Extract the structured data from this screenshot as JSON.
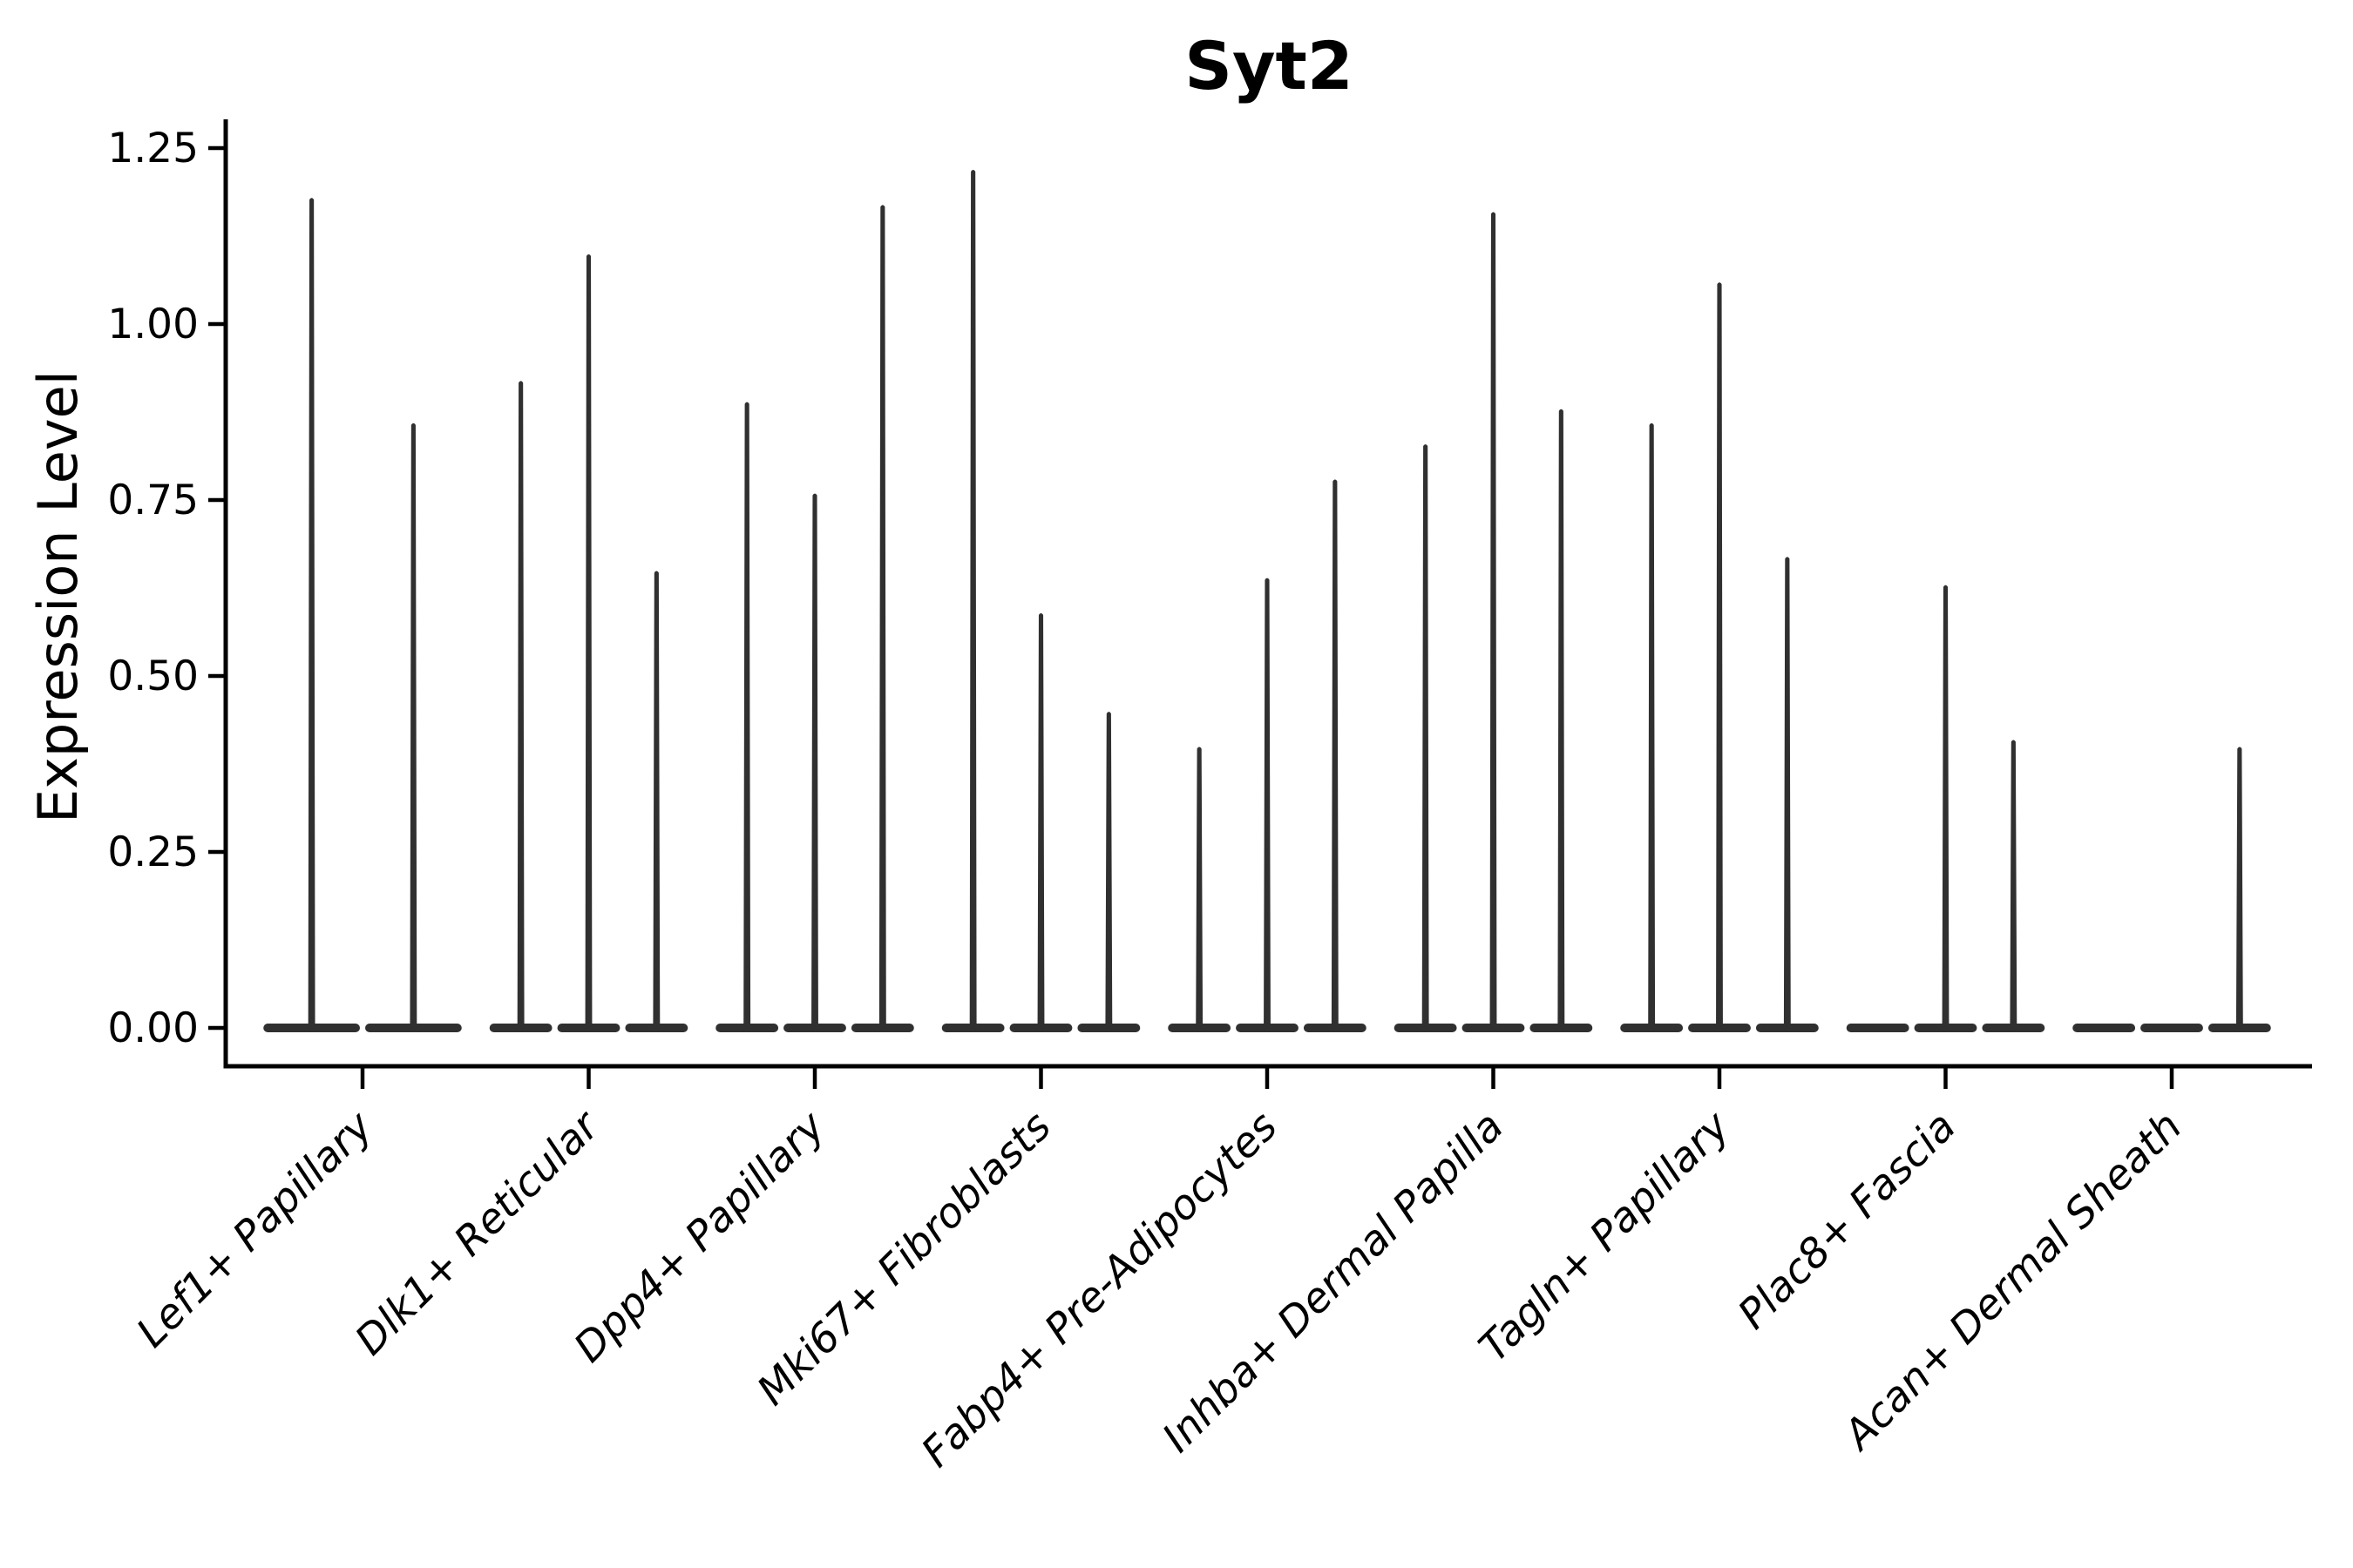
{
  "chart_data": {
    "type": "violin",
    "title": "Syt2",
    "xlabel": "",
    "ylabel": "Expression Level",
    "ytick_labels": [
      "0.00",
      "0.25",
      "0.50",
      "0.75",
      "1.00",
      "1.25"
    ],
    "yticks": [
      0.0,
      0.25,
      0.5,
      0.75,
      1.0,
      1.25
    ],
    "ylim": [
      -0.055,
      1.29
    ],
    "grid": "off",
    "legend": "none",
    "line_color": "#303030",
    "spine_color": "#000000",
    "background_color": "#ffffff",
    "categories": [
      "Lef1+ Papillary",
      "Dlk1+ Reticular",
      "Dpp4+ Papillary",
      "Mki67+ Fibroblasts",
      "Fabp4+ Pre-Adipocytes",
      "Inhba+ Dermal Papilla",
      "Tagln+ Papillary",
      "Plac8+ Fascia",
      "Acan+ Dermal Sheath"
    ],
    "groups": [
      {
        "label": "Lef1+ Papillary",
        "violin_max_values": [
          1.18,
          0.86
        ]
      },
      {
        "label": "Dlk1+ Reticular",
        "violin_max_values": [
          0.92,
          1.1,
          0.65
        ]
      },
      {
        "label": "Dpp4+ Papillary",
        "violin_max_values": [
          0.89,
          0.76,
          1.17
        ]
      },
      {
        "label": "Mki67+ Fibroblasts",
        "violin_max_values": [
          1.22,
          0.59,
          0.45
        ]
      },
      {
        "label": "Fabp4+ Pre-Adipocytes",
        "violin_max_values": [
          0.4,
          0.64,
          0.78
        ]
      },
      {
        "label": "Inhba+ Dermal Papilla",
        "violin_max_values": [
          0.83,
          1.16,
          0.88
        ]
      },
      {
        "label": "Tagln+ Papillary",
        "violin_max_values": [
          0.86,
          1.06,
          0.67
        ]
      },
      {
        "label": "Plac8+ Fascia",
        "violin_max_values": [
          0.0,
          0.63,
          0.41
        ]
      },
      {
        "label": "Acan+ Dermal Sheath",
        "violin_max_values": [
          0.0,
          0.0,
          0.4
        ]
      }
    ],
    "group_total_width_units": 0.9,
    "notes": "Each group shows thin collapsed violins: flat base at 0 plus a narrow spike up to the max expression; violins with max 0 are flat lines only."
  }
}
